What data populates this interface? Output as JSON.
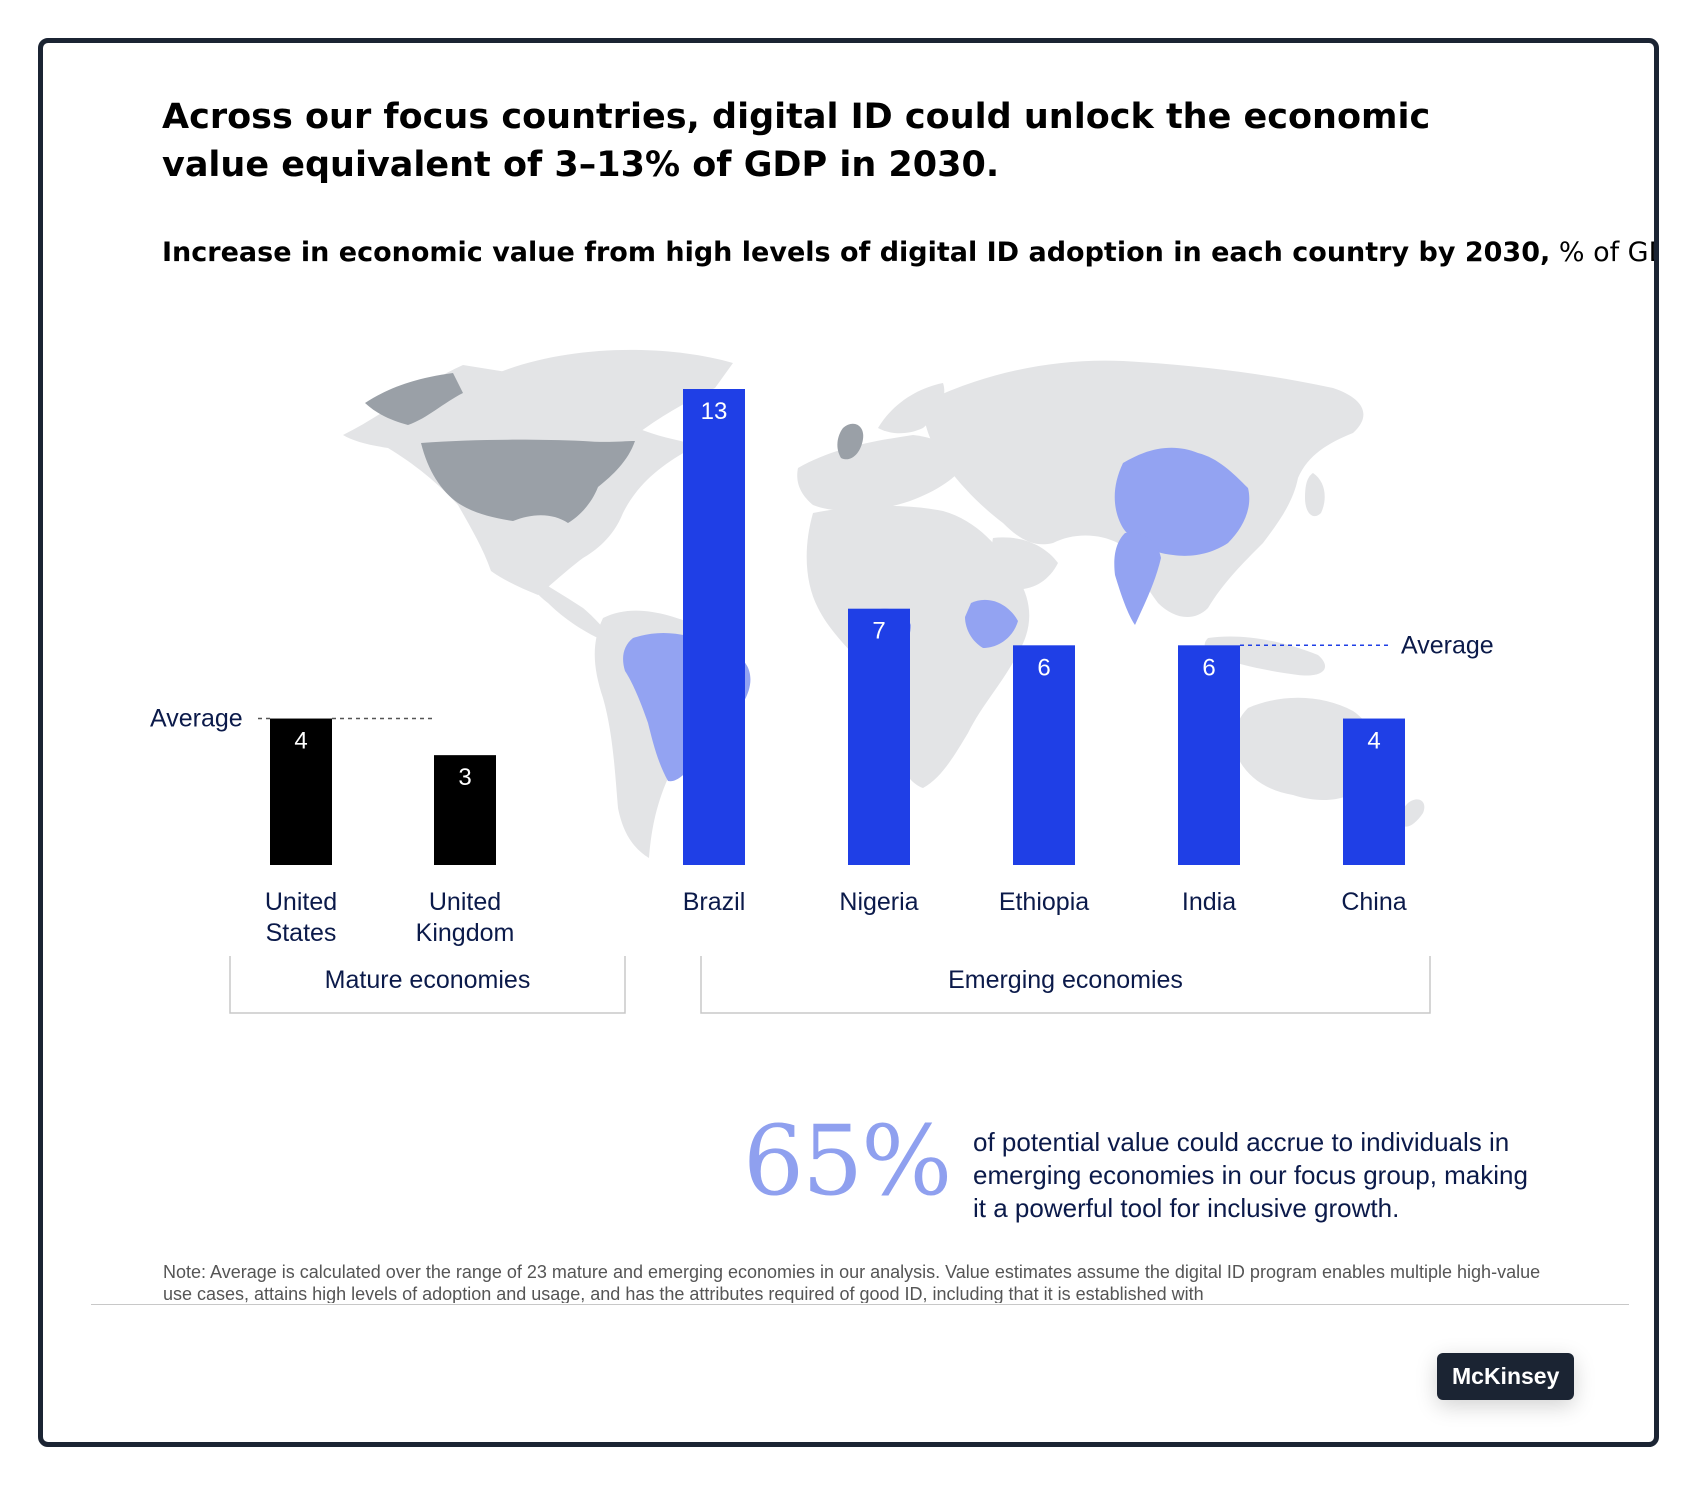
{
  "title": "Across our focus countries, digital ID could unlock the economic value equivalent of 3–13% of GDP in 2030.",
  "subtitle_bold": "Increase in economic value from high levels of digital ID adoption in each country by 2030,",
  "subtitle_unit": "% of GDP",
  "chart_data": {
    "type": "bar",
    "title": "Increase in economic value from high levels of digital ID adoption in each country by 2030",
    "ylabel": "% of GDP",
    "categories": [
      "United States",
      "United Kingdom",
      "Brazil",
      "Nigeria",
      "Ethiopia",
      "India",
      "China"
    ],
    "category_lines": [
      [
        "United",
        "States"
      ],
      [
        "United",
        "Kingdom"
      ],
      [
        "Brazil"
      ],
      [
        "Nigeria"
      ],
      [
        "Ethiopia"
      ],
      [
        "India"
      ],
      [
        "China"
      ]
    ],
    "values": [
      4,
      3,
      13,
      7,
      6,
      6,
      4
    ],
    "groups": [
      {
        "name": "Mature economies",
        "members": [
          "United States",
          "United Kingdom"
        ],
        "color": "#000000",
        "average": 4
      },
      {
        "name": "Emerging economies",
        "members": [
          "Brazil",
          "Nigeria",
          "Ethiopia",
          "India",
          "China"
        ],
        "color": "#1f3fe6",
        "average": 6
      }
    ],
    "average_label": "Average",
    "ylim": [
      0,
      13
    ],
    "grid": false,
    "background": "world map with focus countries highlighted"
  },
  "colors": {
    "mature_bar": "#000000",
    "emerging_bar": "#1f3fe6",
    "emerging_map": "#93a3f2",
    "mature_map": "#9aa0a7",
    "map_base": "#e3e4e6",
    "big_number": "#8fa0ef"
  },
  "callout": {
    "value": "65%",
    "text": "of potential value could accrue to individuals in emerging economies in our focus group, making it a powerful tool for inclusive growth."
  },
  "note": "Note: Average is calculated over the range of 23 mature and emerging economies in our analysis. Value estimates assume the digital ID program enables multiple high-value use cases, attains high levels of adoption and usage, and has the attributes required of good ID, including that it is established with",
  "brand": "McKinsey"
}
